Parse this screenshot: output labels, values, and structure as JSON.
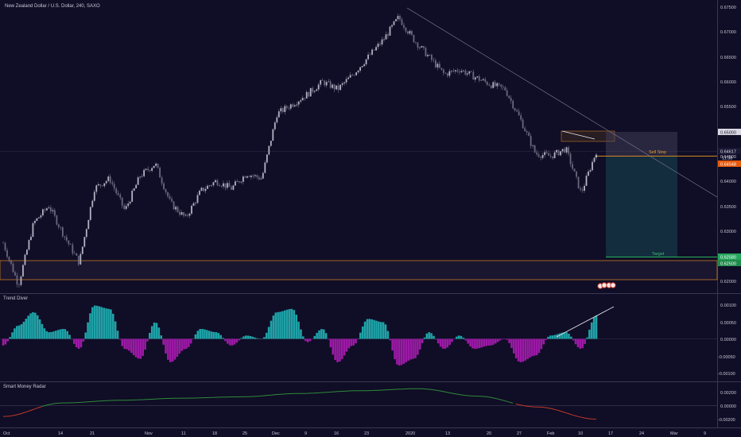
{
  "header": {
    "title": "New Zealand Dollar / U.S. Dollar, 240, SAXO"
  },
  "indicators": {
    "trend_diver": {
      "label": "Trend Diver"
    },
    "smart_money": {
      "label": "Smart Money Radar"
    }
  },
  "annotations": {
    "sell_stop": "Sell Stop",
    "target": "Target"
  },
  "colors": {
    "background": "#100d26",
    "candle": "#8a879b",
    "stop_orange": "#e8590c",
    "target_green": "#26a65b",
    "teal": "#1fa3a8",
    "magenta": "#9c1aa6",
    "line_green": "#2e8b3a",
    "line_red": "#c0392b",
    "zone": "#f0a030"
  },
  "chart_data": [
    {
      "type": "line",
      "subtype": "candlestick",
      "title": "New Zealand Dollar / U.S. Dollar, 240, SAXO",
      "x_ticks": [
        "Oct",
        "14",
        "21",
        "Nov",
        "11",
        "18",
        "25",
        "Dec",
        "9",
        "16",
        "23",
        "2020",
        "13",
        "20",
        "27",
        "Feb",
        "10",
        "17",
        "24",
        "Mar",
        "9"
      ],
      "y_ticks": [
        "0.67500",
        "0.67000",
        "0.66500",
        "0.66000",
        "0.65500",
        "0.65000",
        "0.64500",
        "0.64000",
        "0.63500",
        "0.63000",
        "0.62500",
        "0.62000"
      ],
      "ylim": [
        0.6195,
        0.6772
      ],
      "price_labels": {
        "box_top": "0.65000",
        "current": "0.64617",
        "countdown": "11:38",
        "sell_stop": "0.64548",
        "target_upper": "0.62580",
        "target_lower": "0.62500"
      },
      "series": [
        {
          "x": [
            "Oct 1",
            "Oct 3",
            "Oct 7",
            "Oct 10",
            "Oct 14",
            "Oct 17",
            "Oct 21",
            "Oct 25",
            "Oct 29",
            "Nov 1",
            "Nov 5",
            "Nov 8",
            "Nov 12",
            "Nov 15",
            "Nov 19",
            "Nov 22",
            "Nov 26",
            "Nov 29",
            "Dec 3",
            "Dec 6",
            "Dec 10",
            "Dec 13",
            "Dec 17",
            "Dec 20",
            "Dec 24",
            "Dec 27",
            "Dec 31",
            "Jan 3",
            "Jan 7",
            "Jan 10",
            "Jan 14",
            "Jan 17",
            "Jan 21",
            "Jan 24",
            "Jan 28",
            "Jan 31",
            "Feb 4",
            "Feb 7",
            "Feb 10",
            "Feb 12"
          ],
          "values": [
            0.629,
            0.6205,
            0.633,
            0.6365,
            0.6305,
            0.625,
            0.64,
            0.642,
            0.6355,
            0.6425,
            0.645,
            0.637,
            0.634,
            0.6395,
            0.6415,
            0.64,
            0.643,
            0.642,
            0.655,
            0.657,
            0.659,
            0.6615,
            0.66,
            0.663,
            0.6665,
            0.67,
            0.6745,
            0.67,
            0.6665,
            0.663,
            0.664,
            0.6625,
            0.661,
            0.66,
            0.654,
            0.647,
            0.6465,
            0.648,
            0.639,
            0.6475
          ]
        }
      ]
    },
    {
      "type": "bar",
      "title": "Trend Diver",
      "y_ticks": [
        "0.00100",
        "0.00050",
        "0.00000",
        "-0.00050",
        "-0.00100"
      ],
      "ylim": [
        -0.00125,
        0.00125
      ],
      "x": [
        "Oct 1",
        "Oct 4",
        "Oct 8",
        "Oct 11",
        "Oct 15",
        "Oct 18",
        "Oct 22",
        "Oct 25",
        "Oct 29",
        "Nov 1",
        "Nov 5",
        "Nov 8",
        "Nov 12",
        "Nov 15",
        "Nov 19",
        "Nov 22",
        "Nov 26",
        "Nov 29",
        "Dec 3",
        "Dec 6",
        "Dec 10",
        "Dec 13",
        "Dec 17",
        "Dec 20",
        "Dec 24",
        "Dec 27",
        "Dec 31",
        "Jan 3",
        "Jan 7",
        "Jan 10",
        "Jan 14",
        "Jan 17",
        "Jan 21",
        "Jan 24",
        "Jan 28",
        "Jan 31",
        "Feb 4",
        "Feb 7",
        "Feb 10",
        "Feb 12"
      ],
      "values": [
        -0.0002,
        0.0004,
        0.0008,
        0.0002,
        0.0003,
        -0.0003,
        0.001,
        0.0009,
        -0.0003,
        -0.0006,
        0.0005,
        -0.0007,
        -0.0003,
        0.0003,
        0.0002,
        -0.0002,
        0.0001,
        0.0,
        0.0008,
        0.0009,
        -0.0001,
        0.0003,
        -0.0007,
        -0.0002,
        0.0006,
        0.0005,
        -0.0008,
        -0.0006,
        0.0002,
        -0.0003,
        0.0001,
        -0.0003,
        -0.0002,
        0.0,
        -0.0007,
        -0.0005,
        0.0001,
        0.0002,
        -0.0003,
        0.0007
      ]
    },
    {
      "type": "line",
      "title": "Smart Money Radar",
      "y_ticks": [
        "0.00200",
        "0.00000",
        "-0.00200"
      ],
      "ylim": [
        -0.0027,
        0.0033
      ],
      "series": [
        {
          "x": [
            "Oct 1",
            "Oct 14",
            "Oct 25",
            "Nov 8",
            "Nov 22",
            "Dec 6",
            "Dec 20",
            "Jan 3",
            "Jan 17",
            "Jan 31",
            "Feb 12"
          ],
          "values": [
            -0.0016,
            0.0004,
            0.0008,
            0.0011,
            0.0013,
            0.0018,
            0.0022,
            0.0025,
            0.0014,
            -0.0002,
            -0.002
          ]
        }
      ]
    }
  ]
}
